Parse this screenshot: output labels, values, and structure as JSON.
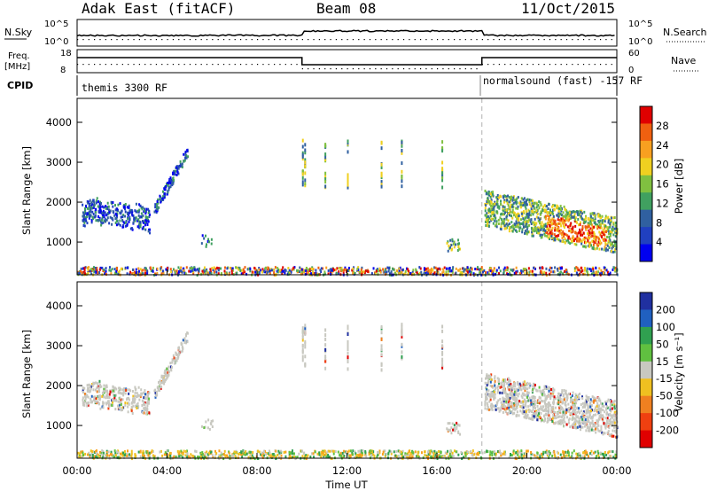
{
  "header": {
    "station": "Adak East (fitACF)",
    "beam": "Beam 08",
    "date": "11/Oct/2015"
  },
  "top_panels": {
    "nsky_label": "N.Sky",
    "nsky_ticks": [
      "10^5",
      "10^0"
    ],
    "nsearch_label": "N.Search",
    "nsearch_ticks": [
      "10^5",
      "10^0"
    ],
    "freq_label": "Freq.",
    "freq_unit": "[MHz]",
    "freq_ticks": [
      "18",
      "8"
    ],
    "nave_label": "Nave",
    "nave_ticks": [
      "60",
      "0"
    ],
    "cpid_label": "CPID",
    "cpid_segments": [
      "themis 3300 RF",
      "normalsound (fast) -157 RF"
    ]
  },
  "chart_data": [
    {
      "type": "heatmap",
      "name": "power",
      "ylabel": "Slant Range [km]",
      "xlabel": "Time UT",
      "y_ticks": [
        "4000",
        "3000",
        "2000",
        "1000"
      ],
      "y_range": [
        180,
        4600
      ],
      "x_ticks": [
        "00:00",
        "04:00",
        "08:00",
        "12:00",
        "16:00",
        "20:00",
        "00:00"
      ],
      "x_range_hours": [
        0,
        24
      ],
      "colorbar": {
        "label": "Power [dB]",
        "ticks": [
          "28",
          "24",
          "20",
          "16",
          "12",
          "8",
          "4"
        ],
        "colors": [
          "#e00000",
          "#f06010",
          "#f8a020",
          "#f0d020",
          "#80c040",
          "#40a060",
          "#3060a0",
          "#2040c0",
          "#0000f0"
        ]
      },
      "scatter_regions": [
        {
          "t_start": 0.2,
          "t_end": 3.2,
          "range_start": 1300,
          "range_end": 2100,
          "level": "low-mid"
        },
        {
          "t_start": 3.6,
          "t_end": 4.9,
          "range_start": 2000,
          "range_end": 3400,
          "level": "low-mid"
        },
        {
          "t_start": 18.2,
          "t_end": 24.0,
          "range_start": 800,
          "range_end": 2400,
          "level": "mid-high"
        },
        {
          "t_start": 0.0,
          "t_end": 24.0,
          "range_start": 180,
          "range_end": 450,
          "level": "mixed"
        }
      ],
      "boundary_hours": 18.0
    },
    {
      "type": "heatmap",
      "name": "velocity",
      "ylabel": "Slant Range [km]",
      "xlabel": "Time UT",
      "y_ticks": [
        "4000",
        "3000",
        "2000",
        "1000"
      ],
      "y_range": [
        180,
        4600
      ],
      "x_ticks": [
        "00:00",
        "04:00",
        "08:00",
        "12:00",
        "16:00",
        "20:00",
        "00:00"
      ],
      "x_range_hours": [
        0,
        24
      ],
      "colorbar": {
        "label": "Velocity [m s⁻¹]",
        "ticks": [
          "200",
          "100",
          "50",
          "15",
          "-15",
          "-50",
          "-100",
          "-200"
        ],
        "colors": [
          "#2030a0",
          "#2060c0",
          "#30a050",
          "#60c040",
          "#c8c8c0",
          "#f0c020",
          "#f08020",
          "#f04010",
          "#e00000"
        ]
      },
      "boundary_hours": 18.0
    }
  ]
}
